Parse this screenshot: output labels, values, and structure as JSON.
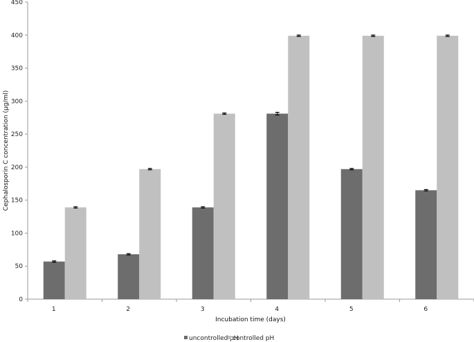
{
  "chart_data": {
    "type": "bar",
    "categories": [
      "1",
      "2",
      "3",
      "4",
      "5",
      "6"
    ],
    "series": [
      {
        "name": "uncontrolled pH",
        "color": "#6d6d6d",
        "values": [
          57,
          68,
          139,
          281,
          197,
          165
        ],
        "errors": [
          1,
          1,
          1,
          2,
          1,
          1
        ]
      },
      {
        "name": "controlled pH",
        "color": "#c0c0c0",
        "values": [
          139,
          197,
          281,
          399,
          399,
          399
        ],
        "errors": [
          1,
          1,
          1,
          1,
          1,
          1
        ]
      }
    ],
    "title": "",
    "xlabel": "Incubation  time  (days)",
    "ylabel": "Cephalosporin  C concentration   (µg/ml)",
    "ylim": [
      0,
      450
    ],
    "yticks": [
      "0",
      "50",
      "100",
      "150",
      "200",
      "250",
      "300",
      "350",
      "400",
      "450"
    ],
    "grid": false,
    "legend_position": "bottom"
  }
}
